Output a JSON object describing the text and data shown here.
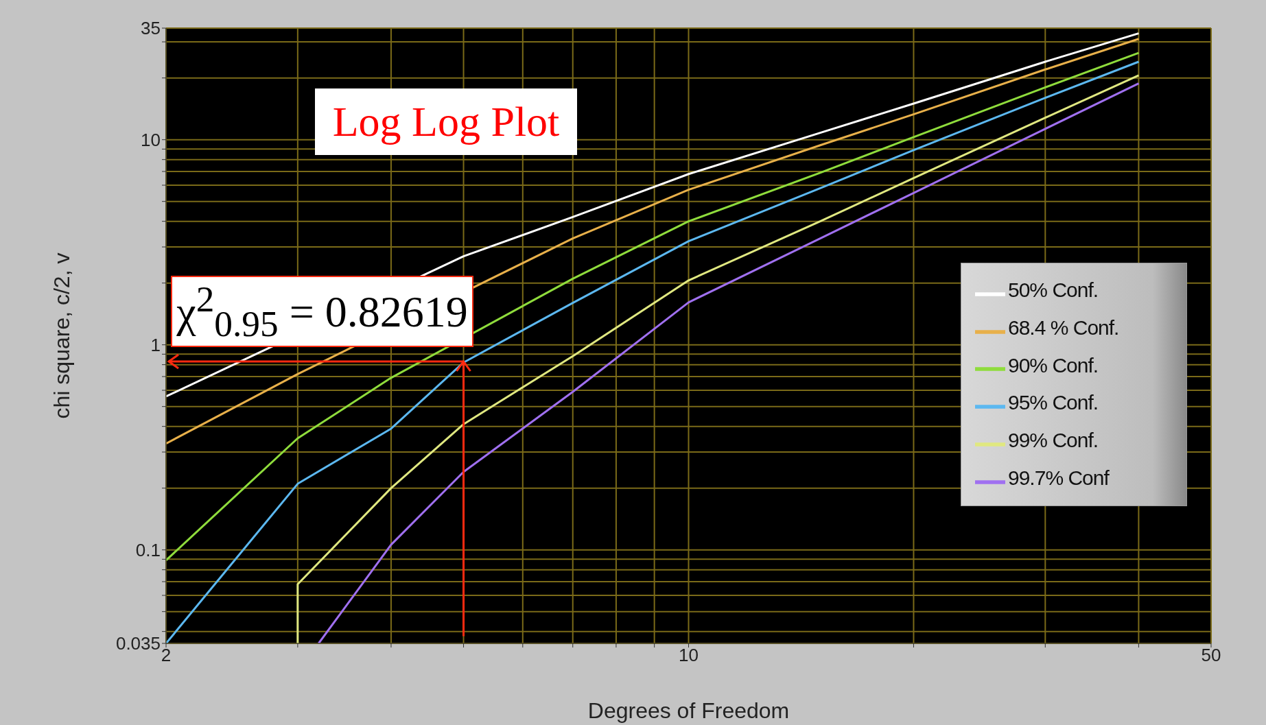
{
  "chart_data": {
    "type": "line",
    "xlabel": "Degrees of Freedom",
    "ylabel": "chi square, c/2, v",
    "log": "xy",
    "grid": true,
    "legend": "right",
    "marker": "none",
    "line_style": "solid",
    "xlim": [
      2,
      50
    ],
    "ylim": [
      0.035,
      35
    ],
    "xticks": [
      2,
      {
        "value": 3,
        "label": null
      },
      {
        "value": 4,
        "label": null
      },
      {
        "value": 5,
        "label": null
      },
      {
        "value": 6,
        "label": null
      },
      {
        "value": 7,
        "label": null
      },
      {
        "value": 8,
        "label": null
      },
      {
        "value": 9,
        "label": null
      },
      10,
      {
        "value": 20,
        "label": null
      },
      {
        "value": 30,
        "label": null
      },
      {
        "value": 40,
        "label": null
      },
      50
    ],
    "yticks": [
      0.035,
      {
        "value": 0.04,
        "label": null
      },
      {
        "value": 0.05,
        "label": null
      },
      {
        "value": 0.06,
        "label": null
      },
      {
        "value": 0.07,
        "label": null
      },
      {
        "value": 0.08,
        "label": null
      },
      {
        "value": 0.09,
        "label": null
      },
      0.1,
      {
        "value": 0.2,
        "label": null
      },
      {
        "value": 0.3,
        "label": null
      },
      {
        "value": 0.4,
        "label": null
      },
      {
        "value": 0.5,
        "label": null
      },
      {
        "value": 0.6,
        "label": null
      },
      {
        "value": 0.7,
        "label": null
      },
      {
        "value": 0.8,
        "label": null
      },
      {
        "value": 0.9,
        "label": null
      },
      1,
      {
        "value": 2,
        "label": null
      },
      {
        "value": 3,
        "label": null
      },
      {
        "value": 4,
        "label": null
      },
      {
        "value": 5,
        "label": null
      },
      {
        "value": 6,
        "label": null
      },
      {
        "value": 7,
        "label": null
      },
      {
        "value": 8,
        "label": null
      },
      {
        "value": 9,
        "label": null
      },
      10,
      {
        "value": 20,
        "label": null
      },
      {
        "value": 30,
        "label": null
      },
      35
    ],
    "series": [
      {
        "name": "50% Conf.",
        "color": "#ffffff",
        "x": [
          2,
          5,
          7,
          10,
          15,
          20,
          30,
          40
        ],
        "values": [
          0.56,
          2.7,
          4.2,
          6.8,
          10.8,
          15,
          24,
          33
        ]
      },
      {
        "name": "68.4 % Conf.",
        "color": "#e8b04a",
        "x": [
          2,
          3,
          7,
          10,
          15,
          20,
          30,
          40
        ],
        "values": [
          0.33,
          0.72,
          3.3,
          5.7,
          9.4,
          13.3,
          22,
          31
        ]
      },
      {
        "name": "90% Conf.",
        "color": "#8fdc3c",
        "x": [
          2,
          3,
          4,
          7,
          10,
          15,
          20,
          30,
          40
        ],
        "values": [
          0.089,
          0.35,
          0.69,
          2.1,
          4.0,
          6.9,
          10.3,
          18,
          26.5
        ]
      },
      {
        "name": "95% Conf.",
        "color": "#5cb8f0",
        "x": [
          2,
          3,
          4,
          5,
          7,
          10,
          15,
          20,
          30,
          40
        ],
        "values": [
          0.035,
          0.21,
          0.39,
          0.82,
          1.6,
          3.2,
          5.8,
          8.9,
          16,
          24
        ]
      },
      {
        "name": "99% Conf.",
        "color": "#e0e880",
        "x": [
          3,
          3,
          4,
          5,
          7,
          10,
          15,
          20,
          30,
          40
        ],
        "values": [
          0.035,
          0.068,
          0.2,
          0.41,
          0.88,
          2.06,
          4.0,
          6.5,
          12.8,
          20.6
        ]
      },
      {
        "name": "99.7% Conf",
        "color": "#a070f0",
        "x": [
          3.2,
          4,
          5,
          7,
          10,
          15,
          20,
          30,
          40
        ],
        "values": [
          0.035,
          0.106,
          0.24,
          0.59,
          1.61,
          3.3,
          5.5,
          11.3,
          18.8
        ]
      }
    ],
    "annotations": [
      "Log Log Plot",
      {
        "text": "χ$^{2}$$_{0.95}$ = 0.82619",
        "x": 5,
        "y": 0.82619
      }
    ]
  }
}
